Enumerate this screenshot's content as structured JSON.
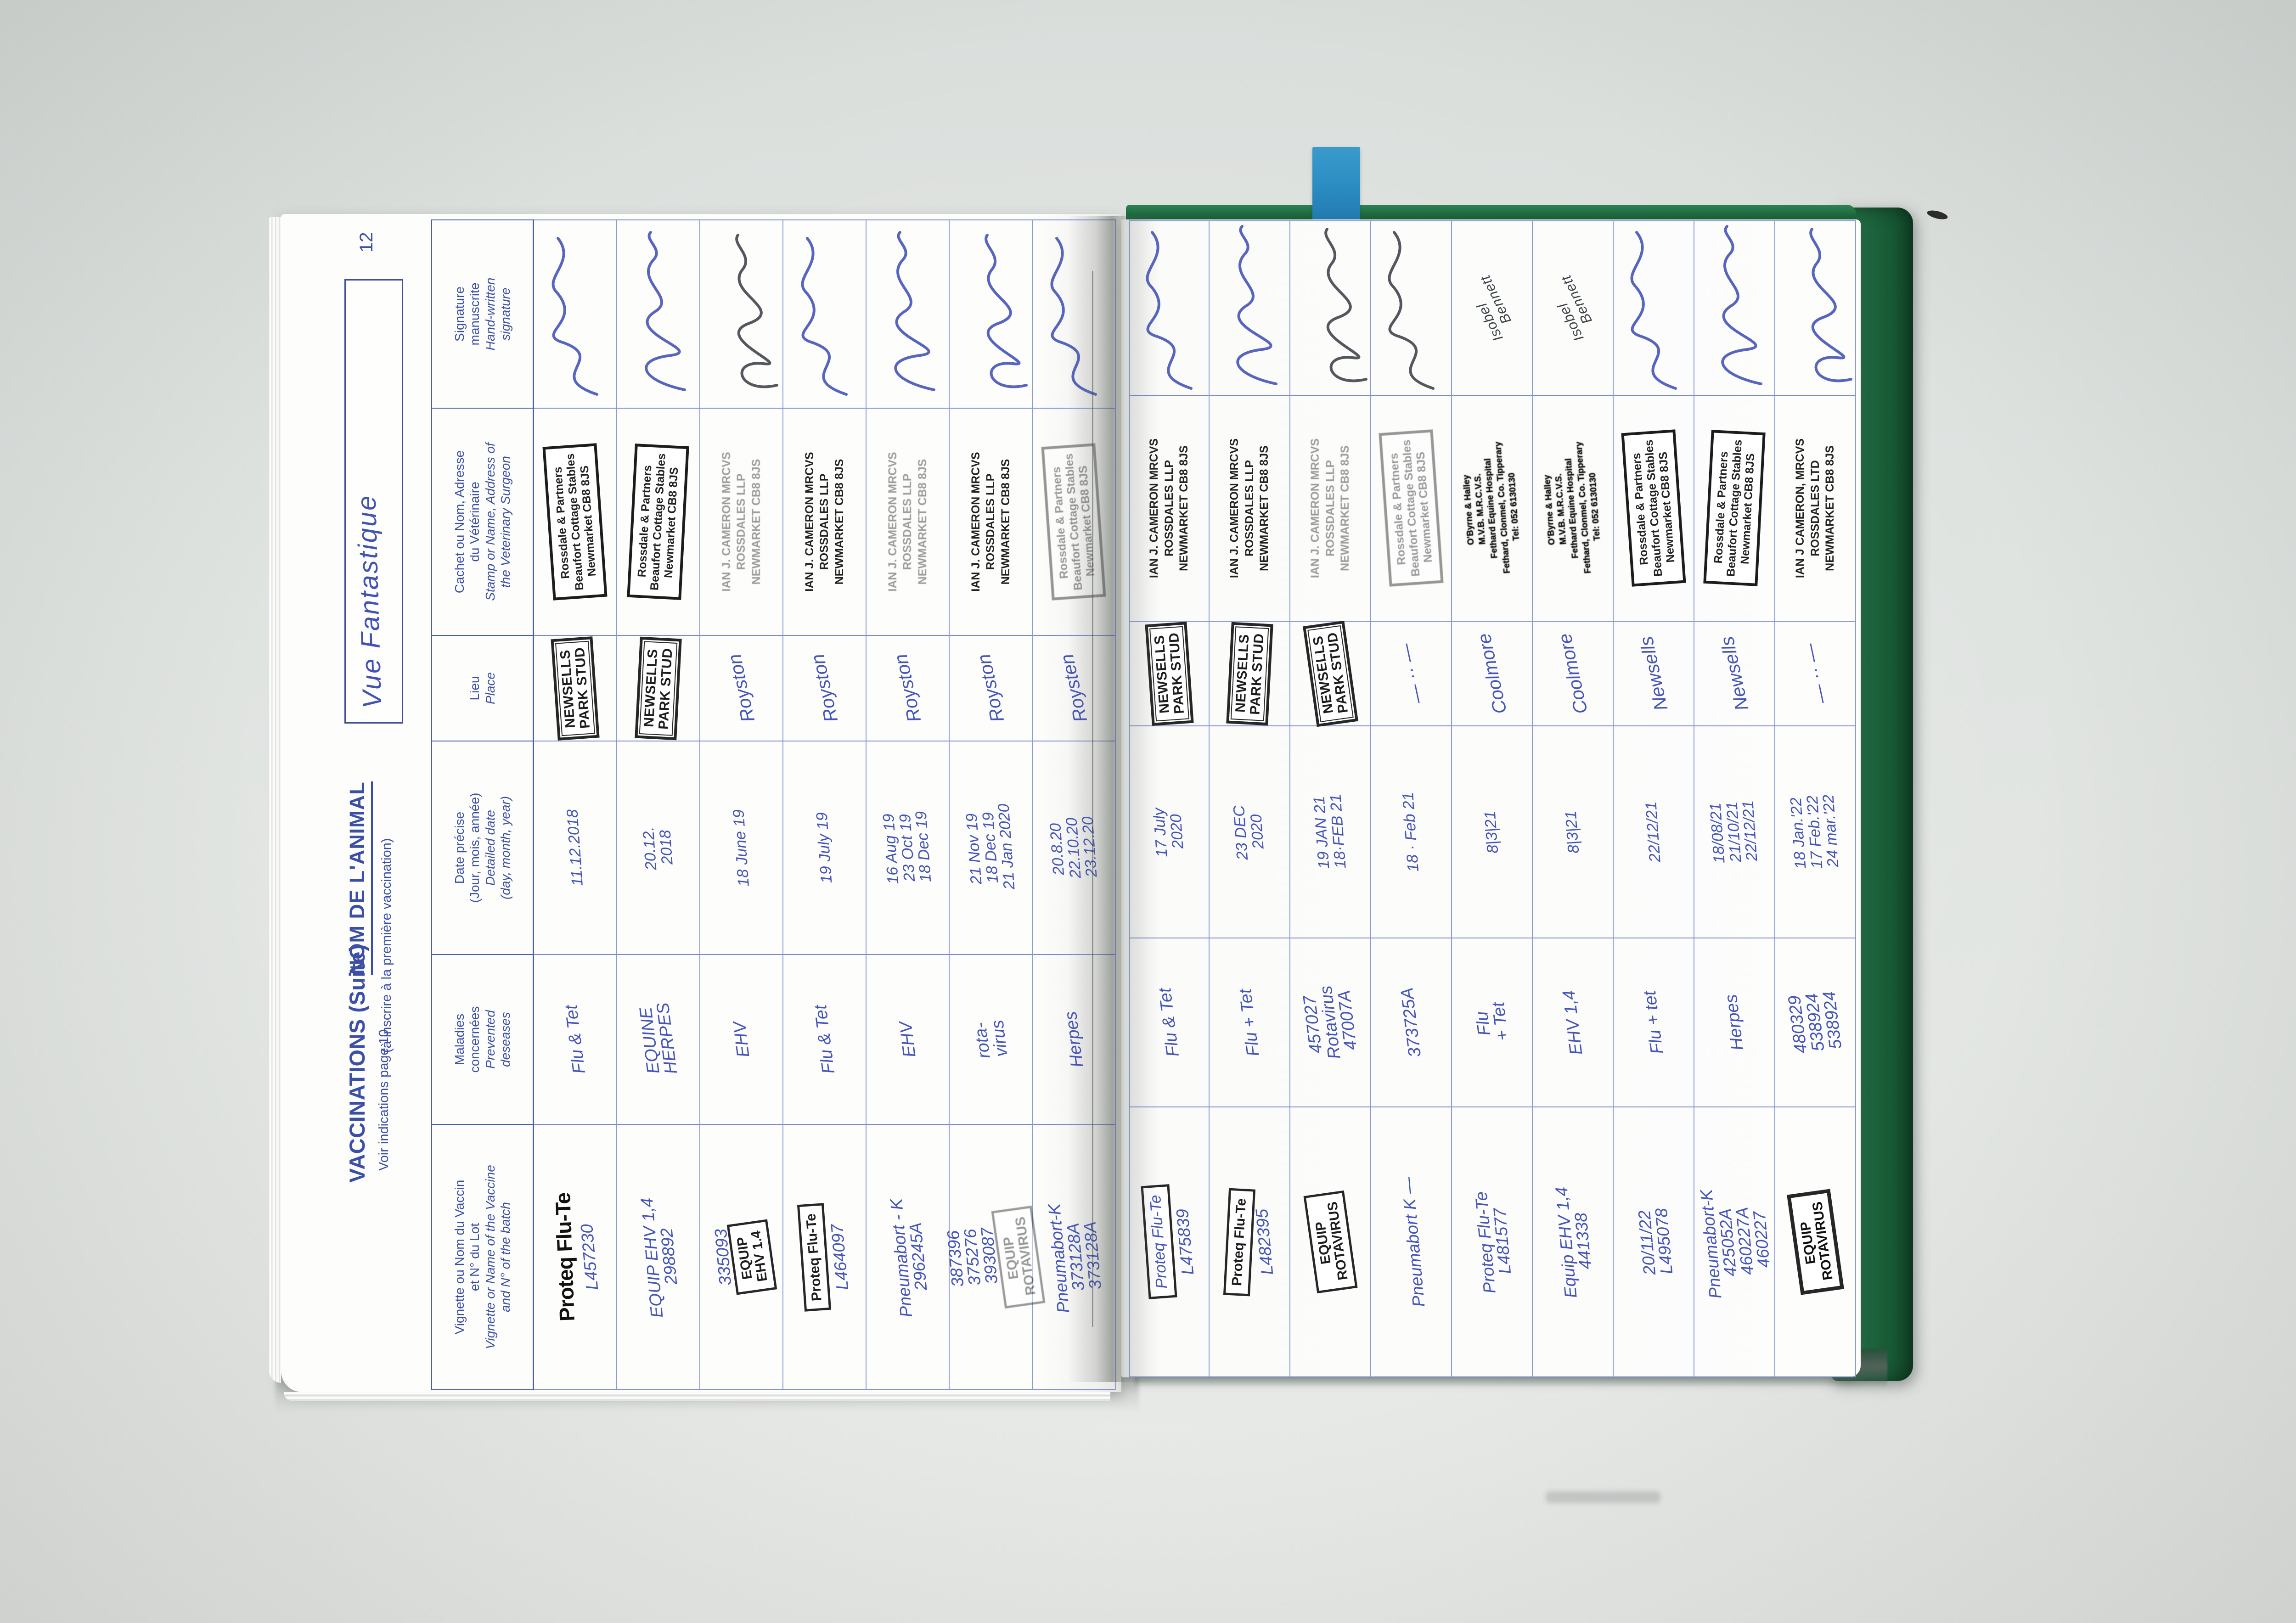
{
  "colors": {
    "cover_green": "#1f6b41",
    "bookmark_blue": "#2c8ec4",
    "print_blue": "#3c4fa6",
    "ink_blue": "#4554b8",
    "ink_dark": "#41454d",
    "stamp_black": "#1f1f1f"
  },
  "book": {
    "page_left": {
      "page_number": "12",
      "title": "VACCINATIONS (Suite)",
      "subtitle": "Voir indications page 10",
      "animal_label": "NOM DE L'ANIMAL",
      "animal_sublabel": "(à inscrire à la première vaccination)",
      "animal_name": "Vue Fantastique",
      "column_headers": [
        {
          "key": "vaccine",
          "fr": "Vignette ou Nom du Vaccin\net N° du Lot",
          "en": "Vignette or Name of the Vaccine\nand N° of the batch"
        },
        {
          "key": "diseases",
          "fr": "Maladies\nconcernées",
          "en": "Prevented\ndeseases"
        },
        {
          "key": "date",
          "fr": "Date précise\n(Jour, mois, année)",
          "en": "Detailed date\n(day, month, year)"
        },
        {
          "key": "place",
          "fr": "Lieu",
          "en": "Place"
        },
        {
          "key": "vet",
          "fr": "Cachet ou Nom, Adresse\ndu Vétérinaire",
          "en": "Stamp or Name, Address of\nthe Veterinary Surgeon"
        },
        {
          "key": "signature",
          "fr": "Signature\nmanuscrite",
          "en": "Hand-written\nsignature"
        }
      ],
      "entries": [
        {
          "vaccine": {
            "stamp": "Proteq Flu-Te",
            "stamp_style": "print",
            "hand": "L457230"
          },
          "diseases": "Flu & Tet",
          "date": "11.12.2018",
          "place": {
            "stamp": "NEWSELLS\nPARK STUD"
          },
          "vet": {
            "style": "boxed",
            "text": "Rossdale & Partners\nBeaufort Cottage Stables\nNewmarket CB8 8JS"
          },
          "signature": {
            "kind": "scribble",
            "ink": "blue"
          }
        },
        {
          "vaccine": {
            "hand": "EQUIP EHV 1,4\n298892"
          },
          "diseases": "EQUINE\nHERPES",
          "date": "20.12.\n2018",
          "place": {
            "stamp": "NEWSELLS\nPARK STUD"
          },
          "vet": {
            "style": "boxed",
            "text": "Rossdale & Partners\nBeaufort Cottage Stables\nNewmarket CB8 8JS"
          },
          "signature": {
            "kind": "scribble",
            "ink": "blue"
          }
        },
        {
          "vaccine": {
            "stamp": "EQUIP\nEHV 1.4",
            "stamp_style": "boxed",
            "hand": "335093",
            "hand_first": true
          },
          "diseases": "EHV",
          "date": "18 June 19",
          "place": {
            "hand": "Royston"
          },
          "vet": {
            "style": "plain",
            "faded": true,
            "text": "IAN J. CAMERON MRCVS\nROSSDALES LLP\nNEWMARKET CB8 8JS"
          },
          "signature": {
            "kind": "scribble",
            "ink": "dark"
          }
        },
        {
          "vaccine": {
            "stamp": "Proteq Flu-Te",
            "stamp_style": "boxed",
            "hand": "L464097"
          },
          "diseases": "Flu & Tet",
          "date": "19 July 19",
          "place": {
            "hand": "Royston"
          },
          "vet": {
            "style": "plain",
            "text": "IAN J. CAMERON MRCVS\nROSSDALES LLP\nNEWMARKET CB8 8JS"
          },
          "signature": {
            "kind": "scribble",
            "ink": "blue"
          }
        },
        {
          "vaccine": {
            "hand": "Pneumabort - K\n296245A"
          },
          "diseases": "EHV",
          "date": "16 Aug 19\n23 Oct 19\n18 Dec 19",
          "place": {
            "hand": "Royston"
          },
          "vet": {
            "style": "plain",
            "faded": true,
            "text": "IAN J. CAMERON MRCVS\nROSSDALES LLP\nNEWMARKET CB8 8JS"
          },
          "signature": {
            "kind": "scribble",
            "ink": "blue"
          }
        },
        {
          "vaccine": {
            "stamp": "EQUIP\nROTAVIRUS",
            "stamp_style": "boxed",
            "stamp_faded": true,
            "hand": "387396\n375276\n393087",
            "hand_first": true
          },
          "diseases": "rota-\nvirus",
          "date": "21 Nov 19\n18 Dec 19\n21 Jan 2020",
          "place": {
            "hand": "Royston"
          },
          "vet": {
            "style": "plain",
            "text": "IAN J. CAMERON MRCVS\nROSSDALES LLP\nNEWMARKET CB8 8JS"
          },
          "signature": {
            "kind": "scribble",
            "ink": "blue"
          }
        },
        {
          "vaccine": {
            "hand": "Pneumabort-K\n373128A\n373128A"
          },
          "diseases": "Herpes",
          "date": "20.8.20\n22.10.20\n23.12.20",
          "place": {
            "hand": "Roysten"
          },
          "vet": {
            "style": "boxed",
            "faded": true,
            "text": "Rossdale & Partners\nBeaufort Cottage Stables\nNewmarket CB8 8JS"
          },
          "signature": {
            "kind": "scribble",
            "ink": "blue"
          }
        }
      ]
    },
    "page_right": {
      "entries": [
        {
          "vaccine": {
            "stamp": "Proteq Flu-Te",
            "stamp_style": "boxed-hand",
            "hand": "L475839"
          },
          "diseases": "Flu & Tet",
          "date": "17 July\n2020",
          "place": {
            "stamp": "NEWSELLS\nPARK STUD"
          },
          "vet": {
            "style": "plain",
            "text": "IAN J. CAMERON MRCVS\nROSSDALES LLP\nNEWMARKET CB8 8JS"
          },
          "signature": {
            "kind": "scribble",
            "ink": "blue"
          }
        },
        {
          "vaccine": {
            "stamp": "Proteq Flu-Te",
            "stamp_style": "boxed",
            "hand": "L482395"
          },
          "diseases": "Flu + Tet",
          "date": "23 DEC\n2020",
          "place": {
            "stamp": "NEWSELLS\nPARK STUD"
          },
          "vet": {
            "style": "plain",
            "text": "IAN J. CAMERON MRCVS\nROSSDALES LLP\nNEWMARKET CB8 8JS"
          },
          "signature": {
            "kind": "scribble",
            "ink": "blue"
          }
        },
        {
          "vaccine": {
            "stamp": "EQUIP\nROTAVIRUS",
            "stamp_style": "boxed"
          },
          "diseases": "457027\nRotavirus\n47007A",
          "date": "19 JAN 21\n18·FEB 21",
          "place": {
            "stamp": "NEWSELLS\nPARK STUD"
          },
          "vet": {
            "style": "plain",
            "faded": true,
            "text": "IAN J. CAMERON MRCVS\nROSSDALES LLP\nNEWMARKET CB8 8JS"
          },
          "signature": {
            "kind": "scribble",
            "ink": "dark"
          }
        },
        {
          "vaccine": {
            "hand": "Pneumabort K —"
          },
          "diseases": "373725A",
          "date": "18 · Feb 21",
          "place": {
            "hand": "— ·· —"
          },
          "vet": {
            "style": "boxed",
            "faded": true,
            "text": "Rossdale & Partners\nBeaufort Cottage Stables\nNewmarket CB8 8JS"
          },
          "signature": {
            "kind": "scribble",
            "ink": "dark"
          }
        },
        {
          "vaccine": {
            "hand": "Proteq Flu-Te\nL481577"
          },
          "diseases": "Flu\n+ Tet",
          "date": "8|3|21",
          "place": {
            "hand": "Coolmore"
          },
          "vet": {
            "style": "obyrne",
            "text": "O'Byrne & Halley\nM.V.B. M.R.C.V.S.\nFethard Equine Hospital\nFethard, Clonmel, Co. Tipperary\nTel: 052 6130130"
          },
          "signature": {
            "kind": "name",
            "text": "Isobel Bennett",
            "ink": "dark"
          }
        },
        {
          "vaccine": {
            "hand": "Equip EHV 1,4\n441338"
          },
          "diseases": "EHV 1,4",
          "date": "8|3|21",
          "place": {
            "hand": "Coolmore"
          },
          "vet": {
            "style": "obyrne",
            "text": "O'Byrne & Halley\nM.V.B. M.R.C.V.S.\nFethard Equine Hospital\nFethard, Clonmel, Co. Tipperary\nTel: 052 6130130"
          },
          "signature": {
            "kind": "name",
            "text": "Isobel Bennett",
            "ink": "dark"
          }
        },
        {
          "vaccine": {
            "hand": "20/11/22\nL495078"
          },
          "diseases": "Flu + tet",
          "date": "22/12/21",
          "place": {
            "hand": "Newsells"
          },
          "vet": {
            "style": "boxed",
            "text": "Rossdale & Partners\nBeaufort Cottage Stables\nNewmarket CB8 8JS"
          },
          "signature": {
            "kind": "scribble",
            "ink": "blue"
          }
        },
        {
          "vaccine": {
            "hand": "Pneumabort-K\n425052A\n460227A\n460227"
          },
          "diseases": "Herpes",
          "date": "18/08/21\n21/10/21\n22/12/21",
          "place": {
            "hand": "Newsells"
          },
          "vet": {
            "style": "boxed",
            "text": "Rossdale & Partners\nBeaufort Cottage Stables\nNewmarket CB8 8JS"
          },
          "signature": {
            "kind": "scribble",
            "ink": "blue"
          }
        },
        {
          "vaccine": {
            "stamp": "EQUIP\nROTAVIRUS",
            "stamp_style": "boxed-dark"
          },
          "diseases": "480329\n538924\n538924",
          "date": "18 Jan.'22\n17 Feb.'22\n24 mar.'22",
          "place": {
            "hand": "— ·· —"
          },
          "vet": {
            "style": "plain",
            "text": "IAN J CAMERON, MRCVS\nROSSDALES LTD\nNEWMARKET CB8 8JS"
          },
          "signature": {
            "kind": "scribble",
            "ink": "blue"
          }
        }
      ]
    }
  }
}
